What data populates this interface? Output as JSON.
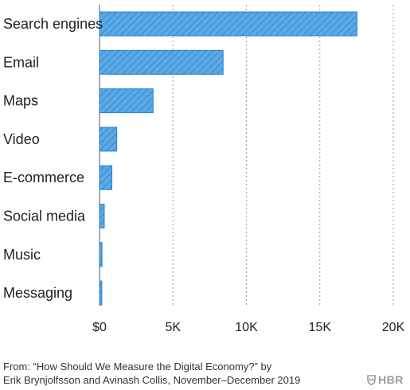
{
  "chart_data": {
    "type": "bar",
    "orientation": "horizontal",
    "categories": [
      "Search engines",
      "Email",
      "Maps",
      "Video",
      "E-commerce",
      "Social media",
      "Music",
      "Messaging"
    ],
    "values": [
      17530,
      8414,
      3648,
      1173,
      842,
      322,
      168,
      155
    ],
    "xlim": [
      0,
      20000
    ],
    "xticks": [
      0,
      5000,
      10000,
      15000,
      20000
    ],
    "xtick_labels": [
      "$0",
      "5K",
      "10K",
      "15K",
      "20K"
    ],
    "title": "",
    "xlabel": "",
    "ylabel": "",
    "grid": "vertical dashed",
    "bar_color": "#5aa9e6",
    "bar_edge_color": "#2f7fc4"
  },
  "source": {
    "line1": "From: “How Should We Measure the Digital Economy?” by",
    "line2": "Erik Brynjolfsson and Avinash Collis, November–December 2019"
  },
  "brand": {
    "text": "HBR",
    "icon": "shield-icon",
    "color": "#9a9a9a"
  }
}
